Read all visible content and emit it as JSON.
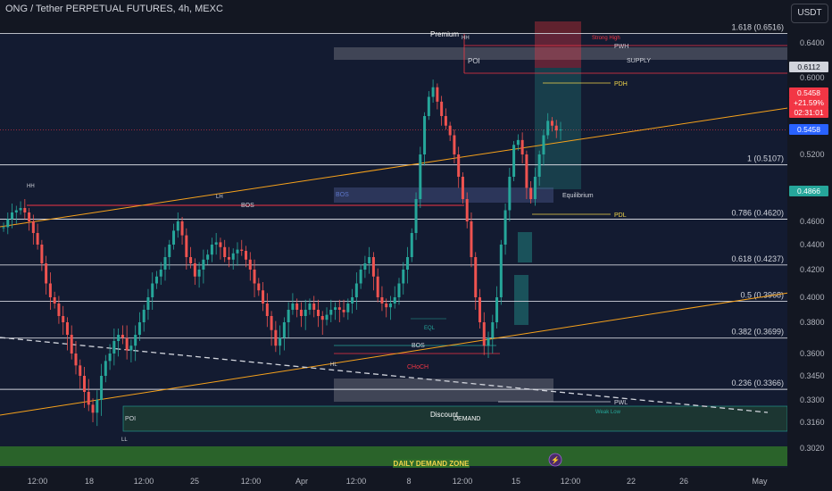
{
  "header": {
    "title": "ONG / Tether PERPETUAL FUTURES, 4h, MEXC",
    "currency_button": "USDT"
  },
  "price_badges": [
    {
      "label": "0.6112",
      "bg": "#d1d4dc",
      "fg": "#131722"
    },
    {
      "label": "0.5458",
      "bg": "#f23645",
      "fg": "#ffffff"
    },
    {
      "label": "+21.59%",
      "bg": "#f23645",
      "fg": "#ffffff"
    },
    {
      "label": "02:31:01",
      "bg": "#f23645",
      "fg": "#ffffff"
    },
    {
      "label": "0.5458",
      "bg": "#2962ff",
      "fg": "#ffffff"
    },
    {
      "label": "0.4866",
      "bg": "#26a69a",
      "fg": "#ffffff"
    }
  ],
  "annotations": {
    "premium": "Premium",
    "hh_top": "HH",
    "strong_high": "Strong High",
    "pwh": "PWH",
    "poi_top": "POI",
    "supply": "SUPPLY",
    "pdh": "PDH",
    "hh_left": "HH",
    "lh": "LH",
    "bos_top": "BOS",
    "bos_box": "BOS",
    "equilibrium": "Equilibrium",
    "pdl": "PDL",
    "eql": "EQL",
    "bos_low": "BOS",
    "hl": "HL",
    "choch": "CHoCH",
    "pwl": "PWL",
    "poi_bottom": "POI",
    "discount": "Discount",
    "demand": "DEMAND",
    "weak_low": "Weak Low",
    "ll": "LL",
    "daily_demand_zone": "DAILY DEMAND ZONE"
  },
  "colors": {
    "background": "#131722",
    "up": "#26a69a",
    "down": "#ef5350",
    "fib": "#d1d4dc",
    "trend": "#f7a21b",
    "bos_line": "#f23645",
    "accent_green": "#26a69a",
    "pdh_yellow": "#f2d64b"
  },
  "chart_data": {
    "type": "candlestick",
    "symbol": "ONG / Tether PERPETUAL FUTURES",
    "timeframe": "4h",
    "exchange": "MEXC",
    "y_axis_ticks": [
      "0.6400",
      "0.6000",
      "0.5200",
      "0.4600",
      "0.4400",
      "0.4200",
      "0.4000",
      "0.3800",
      "0.3600",
      "0.3450",
      "0.3300",
      "0.3160",
      "0.3020"
    ],
    "x_axis_ticks": [
      "12:00",
      "18",
      "12:00",
      "25",
      "12:00",
      "Apr",
      "12:00",
      "8",
      "12:00",
      "15",
      "12:00",
      "22",
      "26",
      "May"
    ],
    "fibonacci_levels": [
      {
        "ratio": "1.618",
        "price": 0.6516,
        "label": "1.618 (0.6516)"
      },
      {
        "ratio": "1",
        "price": 0.5107,
        "label": "1 (0.5107)"
      },
      {
        "ratio": "0.786",
        "price": 0.462,
        "label": "0.786 (0.4620)"
      },
      {
        "ratio": "0.618",
        "price": 0.4237,
        "label": "0.618 (0.4237)"
      },
      {
        "ratio": "0.5",
        "price": 0.3968,
        "label": "0.5 (0.3968)"
      },
      {
        "ratio": "0.382",
        "price": 0.3699,
        "label": "0.382 (0.3699)"
      },
      {
        "ratio": "0.236",
        "price": 0.3366,
        "label": "0.236 (0.3366)"
      }
    ],
    "last_price": 0.5458,
    "change_percent": "+21.59%",
    "countdown": "02:31:01"
  }
}
